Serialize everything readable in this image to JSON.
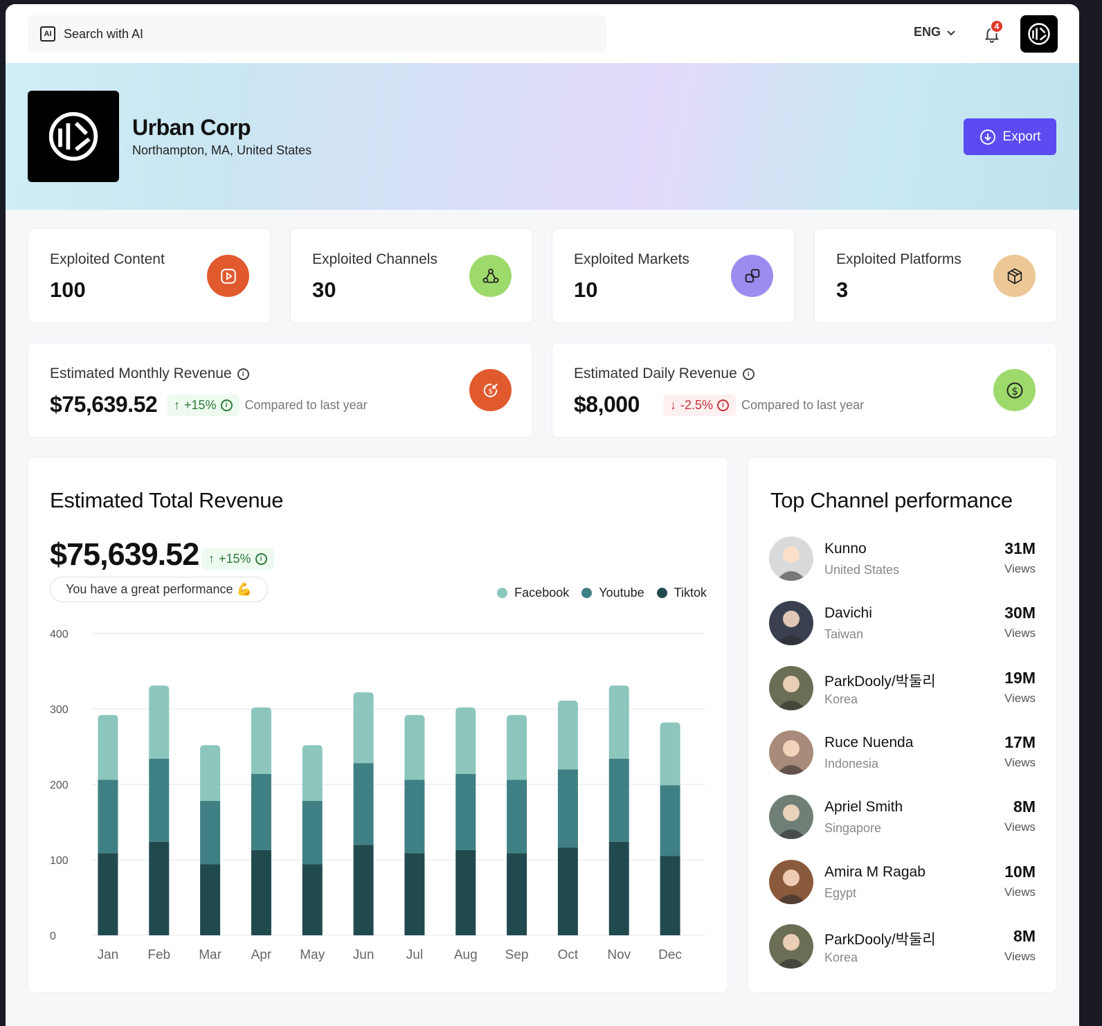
{
  "topbar": {
    "search_placeholder": "Search with AI",
    "ai_icon_label": "AI",
    "language": "ENG",
    "notification_count": "4"
  },
  "company": {
    "name": "Urban Corp",
    "location": "Northampton, MA, United States",
    "export_label": "Export"
  },
  "stats": [
    {
      "label": "Exploited Content",
      "value": "100",
      "color": "#e05a2e",
      "icon": "play-icon"
    },
    {
      "label": "Exploited Channels",
      "value": "30",
      "color": "#9ed96b",
      "icon": "share-icon"
    },
    {
      "label": "Exploited  Markets",
      "value": "10",
      "color": "#9b8cf0",
      "icon": "link-icon"
    },
    {
      "label": "Exploited  Platforms",
      "value": "3",
      "color": "#ecc896",
      "icon": "box-icon"
    }
  ],
  "revenue": [
    {
      "label": "Estimated Monthly Revenue",
      "value": "$75,639.52",
      "change": "+15%",
      "direction": "up",
      "compare": "Compared to last year",
      "color": "#e05a2e",
      "icon": "dollar-arrow-icon"
    },
    {
      "label": "Estimated Daily Revenue",
      "value": "$8,000",
      "change": "-2.5%",
      "direction": "down",
      "compare": "Compared to last year",
      "color": "#9ed96b",
      "icon": "dollar-icon"
    }
  ],
  "total_revenue": {
    "title": "Estimated Total Revenue",
    "value": "$75,639.52",
    "change": "+15%",
    "note": "You have a great performance 💪"
  },
  "chart_data": {
    "type": "bar",
    "stacked": true,
    "categories": [
      "Jan",
      "Feb",
      "Mar",
      "Apr",
      "May",
      "Jun",
      "Jul",
      "Aug",
      "Sep",
      "Oct",
      "Nov",
      "Dec"
    ],
    "series": [
      {
        "name": "Tiktok",
        "color": "#214a4f",
        "values": [
          109,
          124,
          94,
          113,
          94,
          120,
          109,
          113,
          109,
          116,
          124,
          105
        ]
      },
      {
        "name": "Youtube",
        "color": "#3f8084",
        "values": [
          97,
          110,
          84,
          101,
          84,
          108,
          97,
          101,
          97,
          104,
          110,
          94
        ]
      },
      {
        "name": "Facebook",
        "color": "#8cc6bd",
        "values": [
          86,
          97,
          74,
          88,
          74,
          94,
          86,
          88,
          86,
          91,
          97,
          83
        ]
      }
    ],
    "legend_order": [
      "Facebook",
      "Youtube",
      "Tiktok"
    ],
    "y_ticks": [
      0,
      100,
      200,
      300,
      400
    ],
    "ylim": [
      0,
      400
    ],
    "grid": true,
    "legend": "top-right"
  },
  "top_channels": {
    "title": "Top Channel performance",
    "items": [
      {
        "name": "Kunno",
        "country": "United States",
        "views": "31M",
        "unit": "Views",
        "avatar_color": "#d9dadb"
      },
      {
        "name": "Davichi",
        "country": "Taiwan",
        "views": "30M",
        "unit": "Views",
        "avatar_color": "#3a4050"
      },
      {
        "name": "ParkDooly/박둘리",
        "country": "Korea",
        "views": "19M",
        "unit": "Views",
        "avatar_color": "#6b6e55"
      },
      {
        "name": "Ruce Nuenda",
        "country": "Indonesia",
        "views": "17M",
        "unit": "Views",
        "avatar_color": "#a88b7a"
      },
      {
        "name": "Apriel Smith",
        "country": "Singapore",
        "views": "8M",
        "unit": "Views",
        "avatar_color": "#6f7f76"
      },
      {
        "name": "Amira M Ragab",
        "country": "Egypt",
        "views": "10M",
        "unit": "Views",
        "avatar_color": "#8a5a3c"
      },
      {
        "name": "ParkDooly/박둘리",
        "country": "Korea",
        "views": "8M",
        "unit": "Views",
        "avatar_color": "#6b6e55"
      }
    ]
  }
}
